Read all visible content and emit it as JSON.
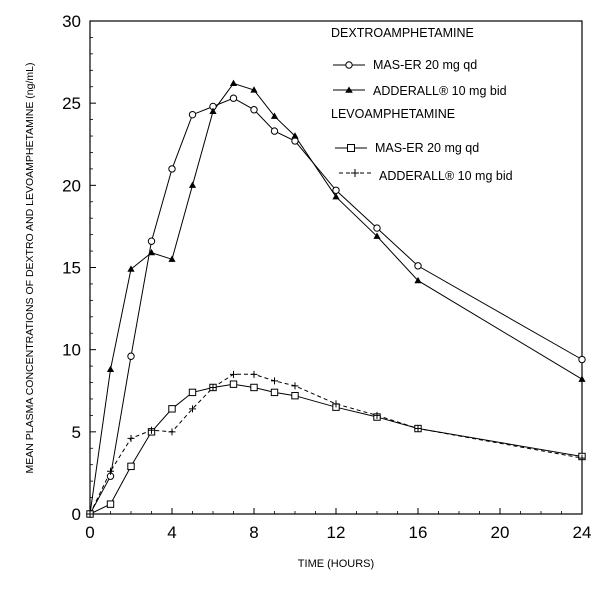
{
  "chart_data": {
    "type": "line",
    "title": "",
    "xlabel": "TIME (HOURS)",
    "ylabel": "MEAN  PLASMA CONCENTRATIONS OF DEXTRO AND LEVOAMPHETAMINE (ng/mL)",
    "xlim": [
      0,
      24
    ],
    "ylim": [
      0,
      30
    ],
    "xticks": [
      0,
      4,
      8,
      12,
      16,
      20,
      24
    ],
    "yticks": [
      0,
      5,
      10,
      15,
      20,
      25,
      30
    ],
    "grid": false,
    "legend": {
      "position": "top-right",
      "groups": [
        {
          "heading": "DEXTROAMPHETAMINE",
          "entries": [
            {
              "series": 0,
              "label": "MAS-ER 20 mg qd"
            },
            {
              "series": 1,
              "label": "ADDERALL® 10 mg bid"
            }
          ]
        },
        {
          "heading": "LEVOAMPHETAMINE",
          "entries": [
            {
              "series": 2,
              "label": "MAS-ER 20 mg qd"
            },
            {
              "series": 3,
              "label": "ADDERALL® 10 mg bid"
            }
          ]
        }
      ]
    },
    "series": [
      {
        "name": "Dextroamphetamine MAS-ER 20 mg qd",
        "marker": "circle-open",
        "line": "solid",
        "x": [
          0,
          1,
          2,
          3,
          4,
          5,
          6,
          7,
          8,
          9,
          10,
          12,
          14,
          16,
          24
        ],
        "y": [
          0,
          2.3,
          9.6,
          16.6,
          21.0,
          24.3,
          24.8,
          25.3,
          24.6,
          23.3,
          22.7,
          19.7,
          17.4,
          15.1,
          9.4
        ]
      },
      {
        "name": "Dextroamphetamine ADDERALL 10 mg bid",
        "marker": "triangle-filled",
        "line": "solid",
        "x": [
          0,
          1,
          2,
          3,
          4,
          5,
          6,
          7,
          8,
          9,
          10,
          12,
          14,
          16,
          24
        ],
        "y": [
          0,
          8.8,
          14.9,
          15.9,
          15.5,
          20.0,
          24.5,
          26.2,
          25.8,
          24.2,
          23.0,
          19.3,
          16.9,
          14.2,
          8.2
        ]
      },
      {
        "name": "Levoamphetamine MAS-ER 20 mg qd",
        "marker": "square-open",
        "line": "solid",
        "x": [
          0,
          1,
          2,
          3,
          4,
          5,
          6,
          7,
          8,
          9,
          10,
          12,
          14,
          16,
          24
        ],
        "y": [
          0,
          0.6,
          2.9,
          5.0,
          6.4,
          7.4,
          7.7,
          7.9,
          7.7,
          7.4,
          7.2,
          6.5,
          5.9,
          5.2,
          3.5
        ]
      },
      {
        "name": "Levoamphetamine ADDERALL 10 mg bid",
        "marker": "plus",
        "line": "dashed",
        "x": [
          0,
          1,
          2,
          3,
          4,
          5,
          6,
          7,
          8,
          9,
          10,
          12,
          14,
          16,
          24
        ],
        "y": [
          0,
          2.6,
          4.6,
          5.1,
          5.0,
          6.4,
          7.7,
          8.5,
          8.5,
          8.1,
          7.8,
          6.7,
          6.0,
          5.2,
          3.4
        ]
      }
    ]
  }
}
